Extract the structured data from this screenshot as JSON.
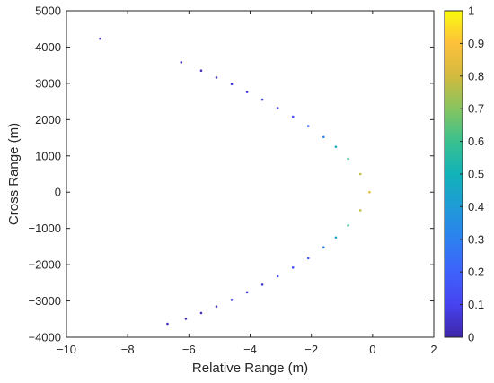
{
  "chart_data": {
    "type": "scatter",
    "title": "",
    "xlabel": "Relative Range (m)",
    "ylabel": "Cross Range (m)",
    "xlim": [
      -10,
      2
    ],
    "ylim": [
      -4000,
      5000
    ],
    "xticks": [
      -10,
      -8,
      -6,
      -4,
      -2,
      0,
      2
    ],
    "yticks": [
      -4000,
      -3000,
      -2000,
      -1000,
      0,
      1000,
      2000,
      3000,
      4000,
      5000
    ],
    "xtick_labels": [
      "−10",
      "−8",
      "−6",
      "−4",
      "−2",
      "0",
      "2"
    ],
    "ytick_labels": [
      "−4000",
      "−3000",
      "−2000",
      "−1000",
      "0",
      "1000",
      "2000",
      "3000",
      "4000",
      "5000"
    ],
    "grid": false,
    "colorbar": {
      "colormap": "parula",
      "range": [
        0,
        1
      ],
      "ticks": [
        0,
        0.1,
        0.2,
        0.3,
        0.4,
        0.5,
        0.6,
        0.7,
        0.8,
        0.9,
        1
      ],
      "tick_labels": [
        "0",
        "0.1",
        "0.2",
        "0.3",
        "0.4",
        "0.5",
        "0.6",
        "0.7",
        "0.8",
        "0.9",
        "1"
      ]
    },
    "points": [
      {
        "x": -8.9,
        "y": 4230,
        "v": 0.02
      },
      {
        "x": -6.25,
        "y": 3580,
        "v": 0.03
      },
      {
        "x": -5.6,
        "y": 3350,
        "v": 0.04
      },
      {
        "x": -5.1,
        "y": 3160,
        "v": 0.05
      },
      {
        "x": -4.6,
        "y": 2980,
        "v": 0.06
      },
      {
        "x": -4.1,
        "y": 2760,
        "v": 0.07
      },
      {
        "x": -3.6,
        "y": 2550,
        "v": 0.08
      },
      {
        "x": -3.1,
        "y": 2320,
        "v": 0.1
      },
      {
        "x": -2.6,
        "y": 2080,
        "v": 0.13
      },
      {
        "x": -2.1,
        "y": 1820,
        "v": 0.18
      },
      {
        "x": -1.6,
        "y": 1520,
        "v": 0.3
      },
      {
        "x": -1.2,
        "y": 1250,
        "v": 0.45
      },
      {
        "x": -0.8,
        "y": 920,
        "v": 0.6
      },
      {
        "x": -0.4,
        "y": 500,
        "v": 0.78
      },
      {
        "x": -0.1,
        "y": 0,
        "v": 0.85
      },
      {
        "x": -0.4,
        "y": -500,
        "v": 0.78
      },
      {
        "x": -0.8,
        "y": -920,
        "v": 0.6
      },
      {
        "x": -1.2,
        "y": -1250,
        "v": 0.45
      },
      {
        "x": -1.6,
        "y": -1520,
        "v": 0.3
      },
      {
        "x": -2.1,
        "y": -1820,
        "v": 0.18
      },
      {
        "x": -2.6,
        "y": -2080,
        "v": 0.13
      },
      {
        "x": -3.1,
        "y": -2320,
        "v": 0.1
      },
      {
        "x": -3.6,
        "y": -2550,
        "v": 0.08
      },
      {
        "x": -4.1,
        "y": -2760,
        "v": 0.07
      },
      {
        "x": -4.6,
        "y": -2970,
        "v": 0.06
      },
      {
        "x": -5.1,
        "y": -3150,
        "v": 0.05
      },
      {
        "x": -5.6,
        "y": -3330,
        "v": 0.04
      },
      {
        "x": -6.1,
        "y": -3490,
        "v": 0.03
      },
      {
        "x": -6.7,
        "y": -3630,
        "v": 0.02
      }
    ]
  }
}
